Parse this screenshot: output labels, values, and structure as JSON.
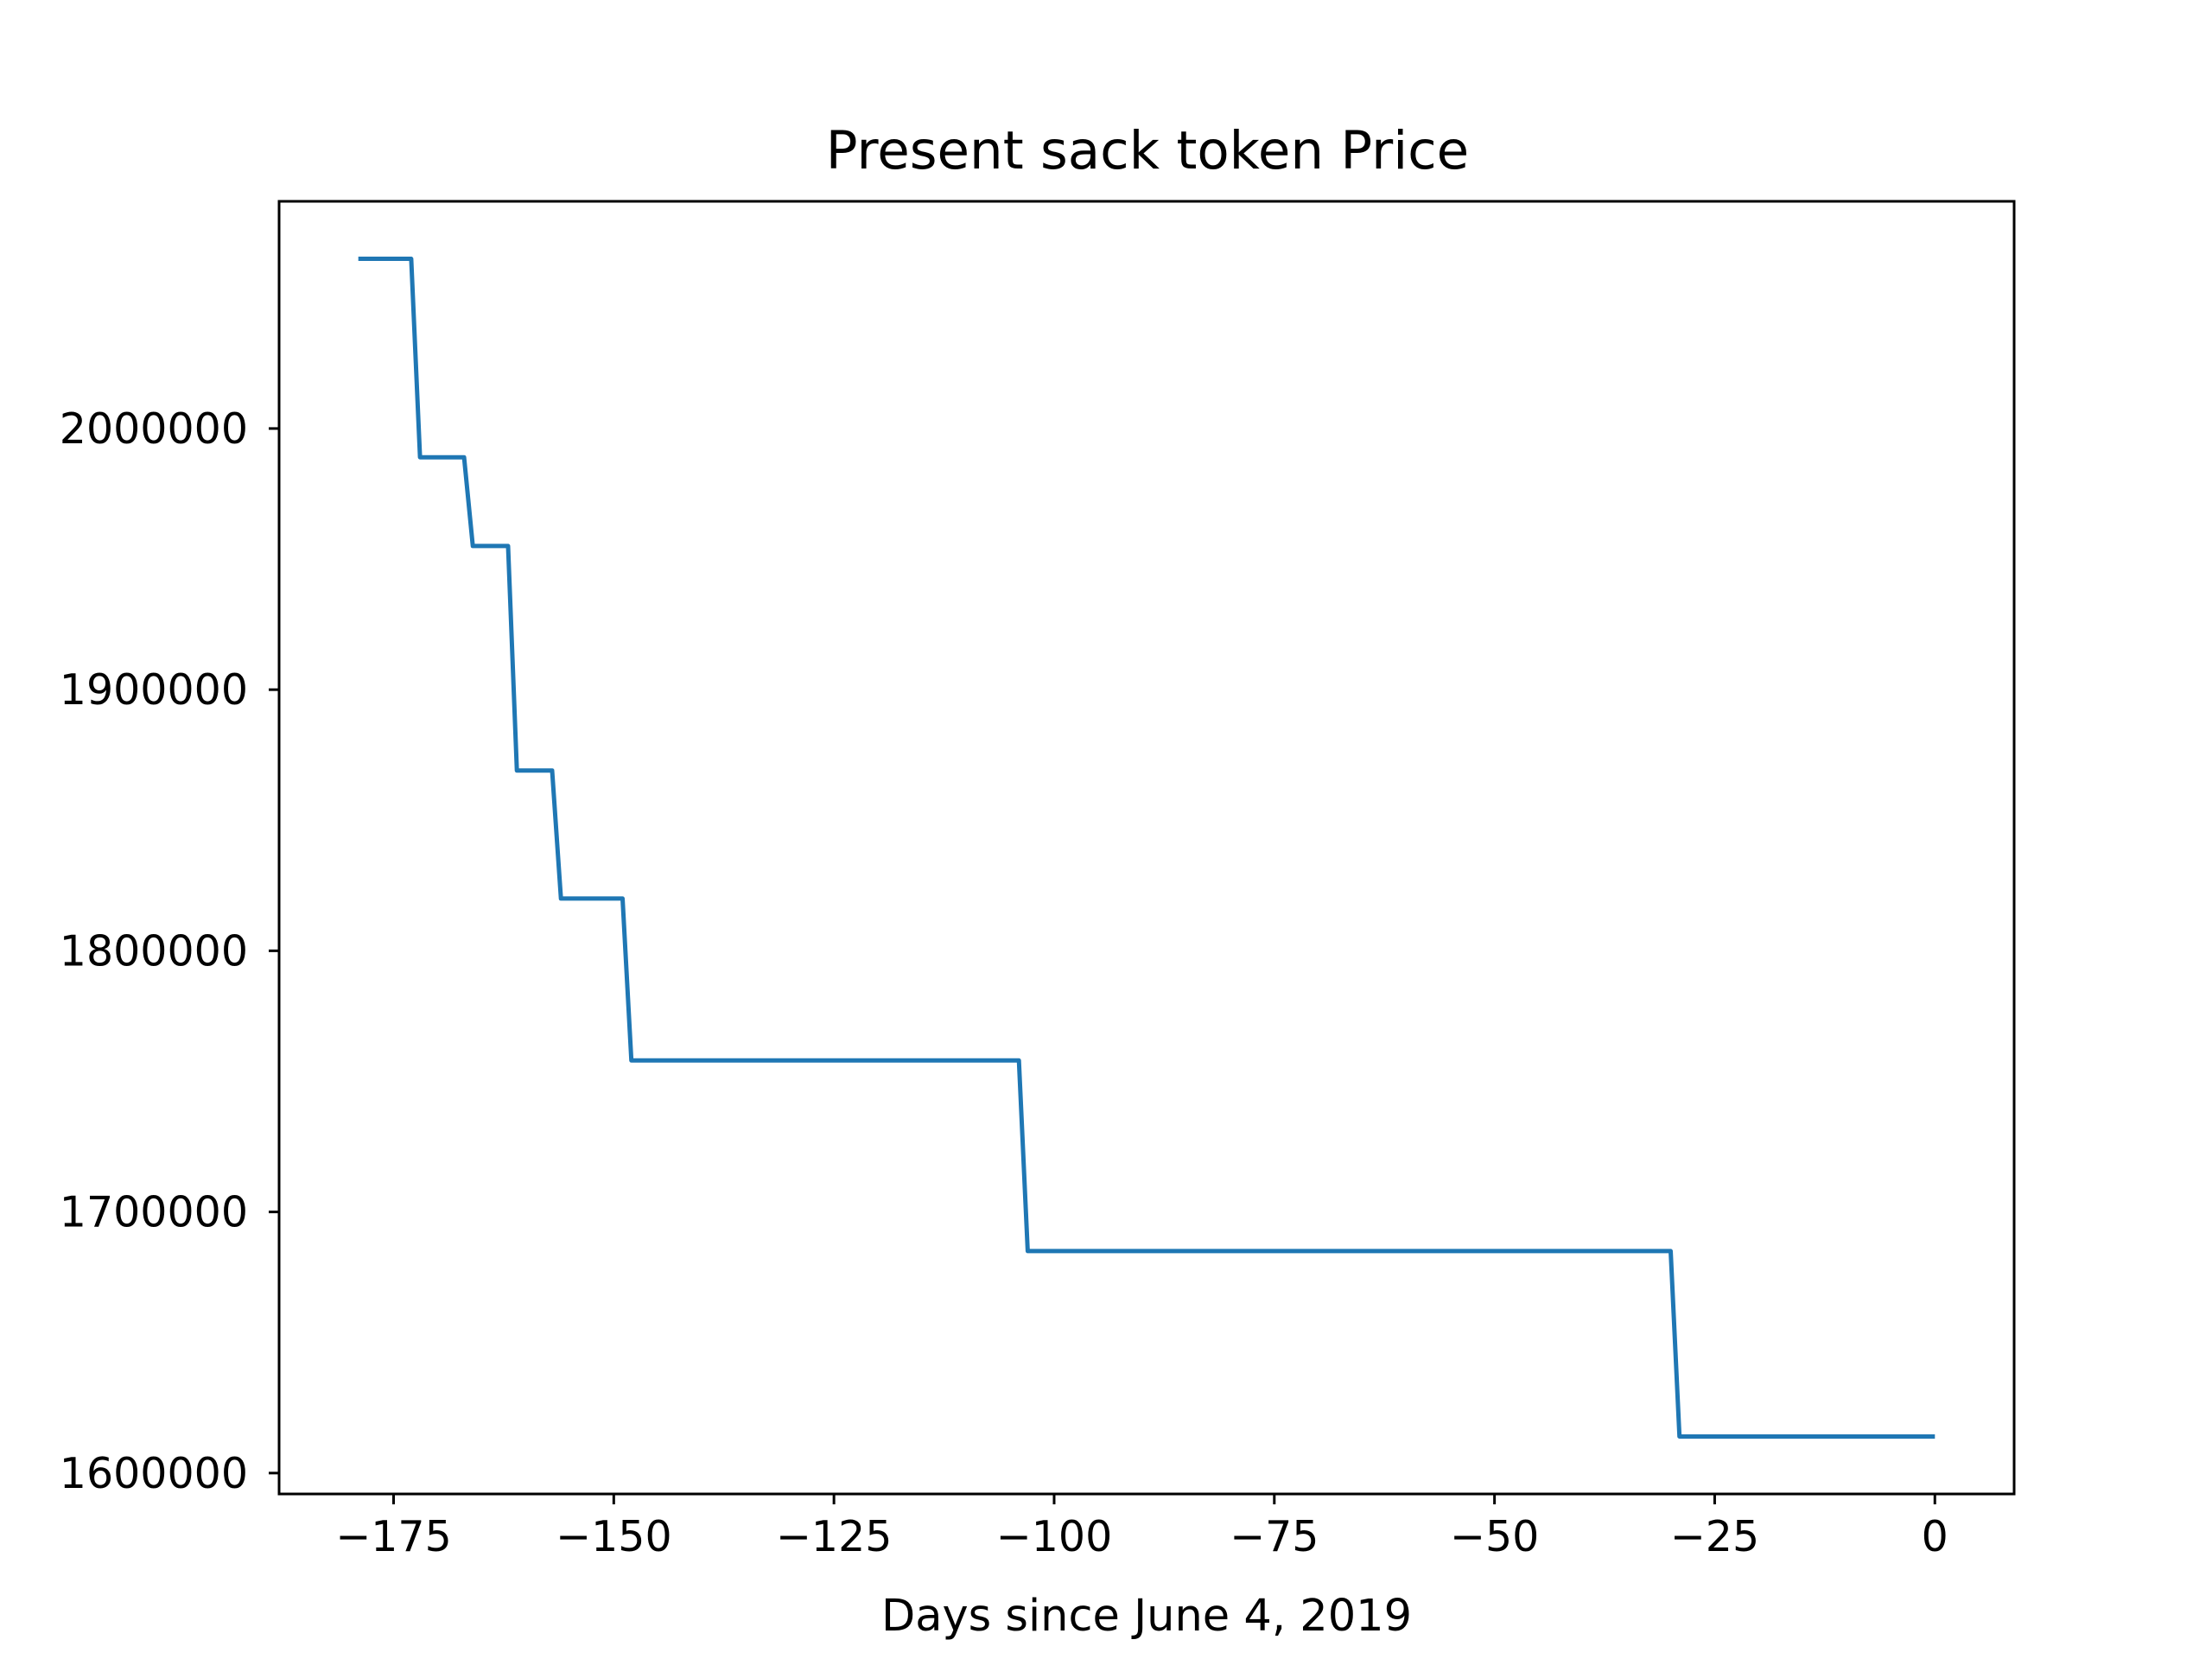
{
  "chart_data": {
    "type": "line",
    "title": "Present sack token Price",
    "xlabel": "Days since June 4, 2019",
    "ylabel": "",
    "xlim": [
      -188,
      9
    ],
    "ylim": [
      1592000,
      2087000
    ],
    "xticks": [
      -175,
      -150,
      -125,
      -100,
      -75,
      -50,
      -25,
      0
    ],
    "xtick_labels": [
      "−175",
      "−150",
      "−125",
      "−100",
      "−75",
      "−50",
      "−25",
      "0"
    ],
    "yticks": [
      1600000,
      1700000,
      1800000,
      1900000,
      2000000
    ],
    "ytick_labels": [
      "1600000",
      "1700000",
      "1800000",
      "1900000",
      "2000000"
    ],
    "grid": false,
    "legend": "none",
    "series": [
      {
        "color": "#1f77b4",
        "x": [
          -179,
          -173,
          -172,
          -167,
          -166,
          -162,
          -161,
          -157,
          -156,
          -149,
          -148,
          -104,
          -103,
          -30,
          -29,
          0
        ],
        "y": [
          2065000,
          2065000,
          1989000,
          1989000,
          1955000,
          1955000,
          1869000,
          1869000,
          1820000,
          1820000,
          1758000,
          1758000,
          1685000,
          1685000,
          1614000,
          1614000
        ]
      }
    ]
  }
}
